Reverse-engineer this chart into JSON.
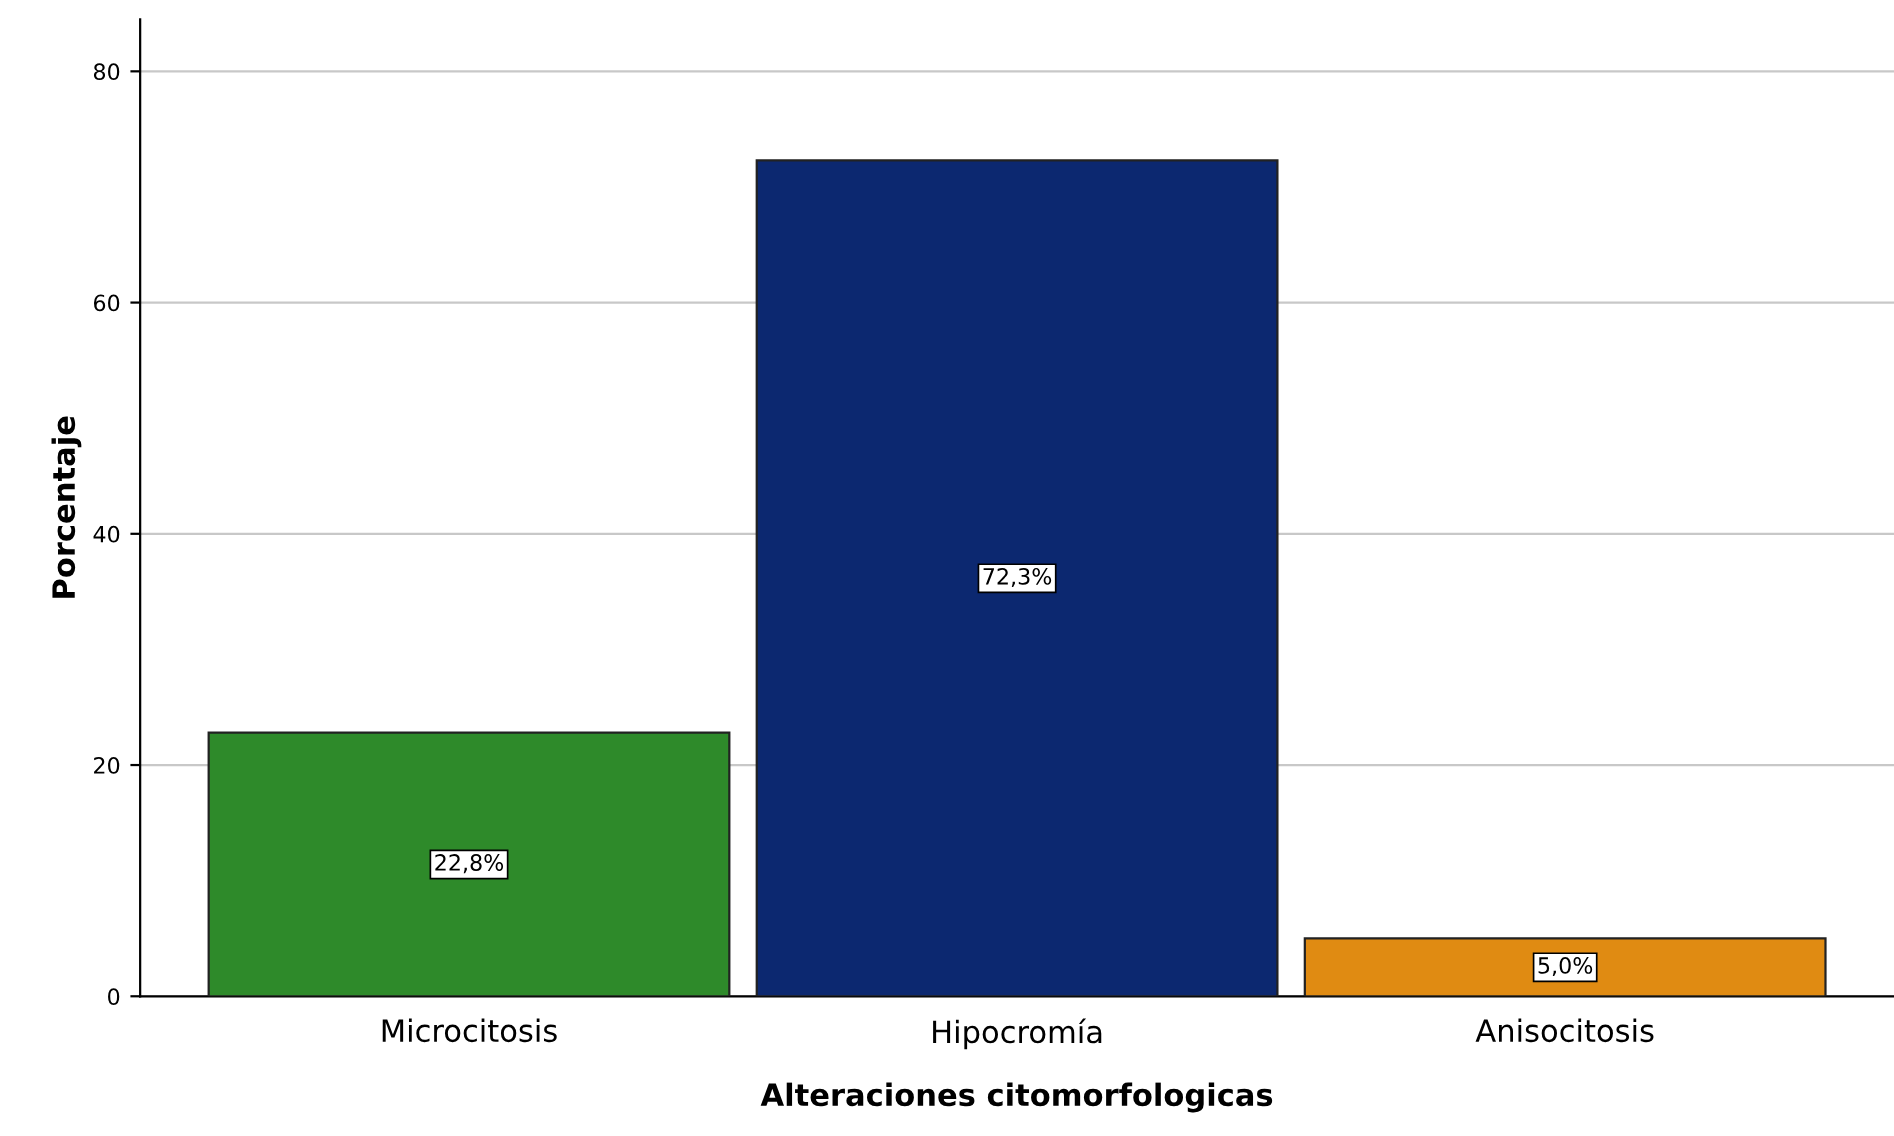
{
  "chart_data": {
    "type": "bar",
    "xlabel": "Alteraciones citomorfologicas",
    "ylabel": "Porcentaje",
    "categories": [
      "Microcitosis",
      "Hipocromía",
      "Anisocitosis"
    ],
    "values": [
      22.8,
      72.3,
      5.0
    ],
    "colors": [
      "#2e8a2a",
      "#0c2870",
      "#e08b12"
    ],
    "value_labels": [
      "22,8%",
      "72,3%",
      "5,0%"
    ],
    "ylim": [
      0,
      84.5
    ],
    "yticks": [
      0,
      20,
      40,
      60,
      80
    ],
    "grid": "y"
  }
}
